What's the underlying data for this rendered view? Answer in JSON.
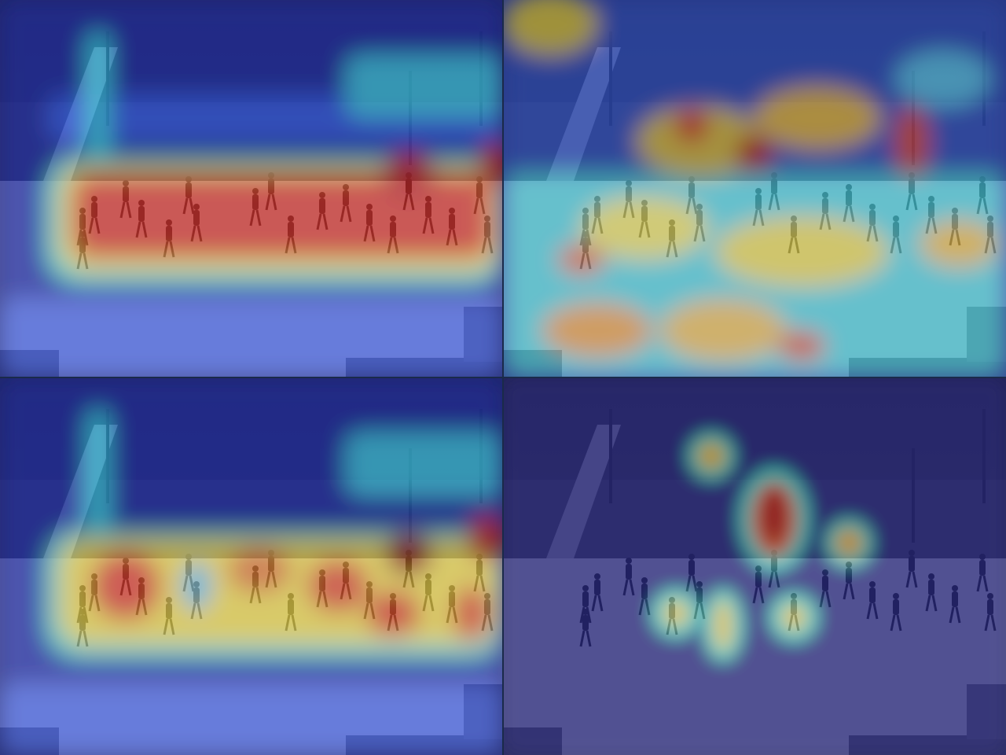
{
  "grid": {
    "rows": 2,
    "cols": 2
  },
  "scene": {
    "description_colors": {
      "plaza": "#9a9aa0",
      "dark_ground": "#3a3a44",
      "people": "#1a1a1e"
    }
  },
  "colormap": "jet",
  "panels": [
    {
      "name": "heatmap-top-left",
      "pattern": "walkway-band-strong"
    },
    {
      "name": "heatmap-top-right",
      "pattern": "diffuse-scattered"
    },
    {
      "name": "heatmap-bottom-left",
      "pattern": "walkway-band-medium"
    },
    {
      "name": "heatmap-bottom-right",
      "pattern": "sparse-spots"
    }
  ]
}
